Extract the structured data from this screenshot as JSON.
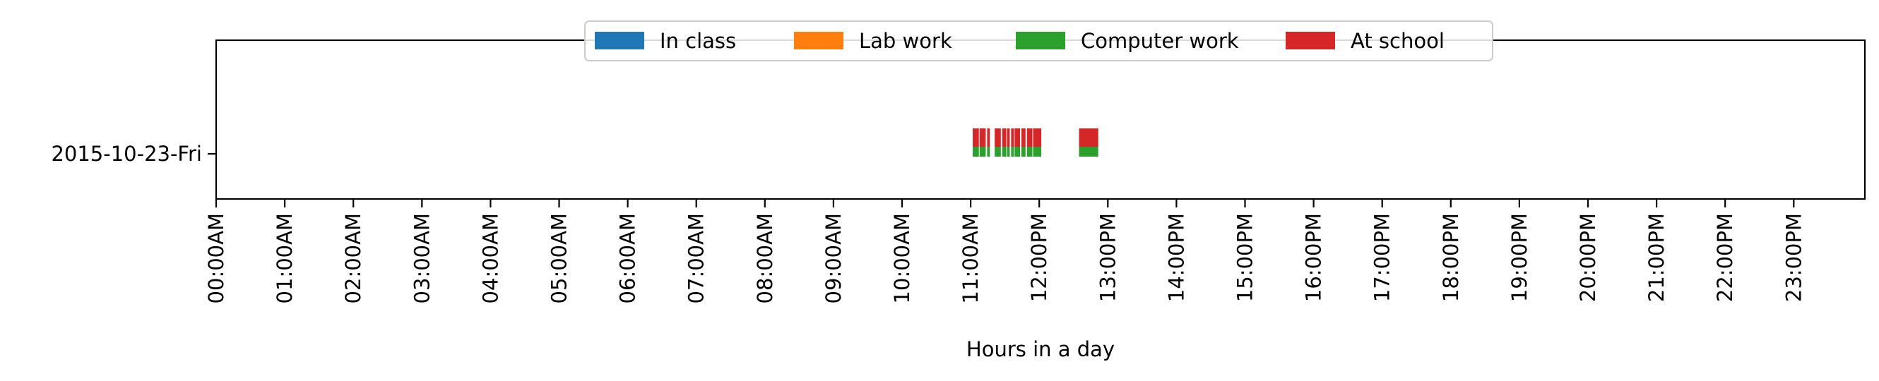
{
  "chart_data": {
    "type": "bar",
    "subtype": "horizontal-timeline",
    "xlabel": "Hours in a day",
    "x_tick_labels": [
      "00:00AM",
      "01:00AM",
      "02:00AM",
      "03:00AM",
      "04:00AM",
      "05:00AM",
      "06:00AM",
      "07:00AM",
      "08:00AM",
      "09:00AM",
      "10:00AM",
      "11:00AM",
      "12:00PM",
      "13:00PM",
      "14:00PM",
      "15:00PM",
      "16:00PM",
      "17:00PM",
      "18:00PM",
      "19:00PM",
      "20:00PM",
      "21:00PM",
      "22:00PM",
      "23:00PM"
    ],
    "xlim": [
      0,
      24
    ],
    "y_categories": [
      "2015-10-23-Fri"
    ],
    "legend_position": "top-center",
    "grid": false,
    "series": [
      {
        "name": "In class",
        "color": "#1f77b4",
        "intervals": []
      },
      {
        "name": "Lab work",
        "color": "#ff7f0e",
        "intervals": []
      },
      {
        "name": "Computer work",
        "color": "#2ca02c",
        "intervals": [
          [
            11.03,
            11.12
          ],
          [
            11.13,
            11.22
          ],
          [
            11.24,
            11.28
          ],
          [
            11.35,
            11.44
          ],
          [
            11.46,
            11.52
          ],
          [
            11.53,
            11.57
          ],
          [
            11.59,
            11.63
          ],
          [
            11.64,
            11.72
          ],
          [
            11.74,
            11.8
          ],
          [
            11.82,
            11.9
          ],
          [
            11.91,
            12.03
          ],
          [
            12.58,
            12.86
          ]
        ]
      },
      {
        "name": "At school",
        "color": "#d62728",
        "intervals": [
          [
            11.03,
            11.12
          ],
          [
            11.13,
            11.22
          ],
          [
            11.24,
            11.28
          ],
          [
            11.35,
            11.44
          ],
          [
            11.46,
            11.52
          ],
          [
            11.53,
            11.57
          ],
          [
            11.59,
            11.63
          ],
          [
            11.64,
            11.72
          ],
          [
            11.74,
            11.8
          ],
          [
            11.82,
            11.9
          ],
          [
            11.91,
            12.03
          ],
          [
            12.58,
            12.86
          ]
        ]
      }
    ]
  }
}
